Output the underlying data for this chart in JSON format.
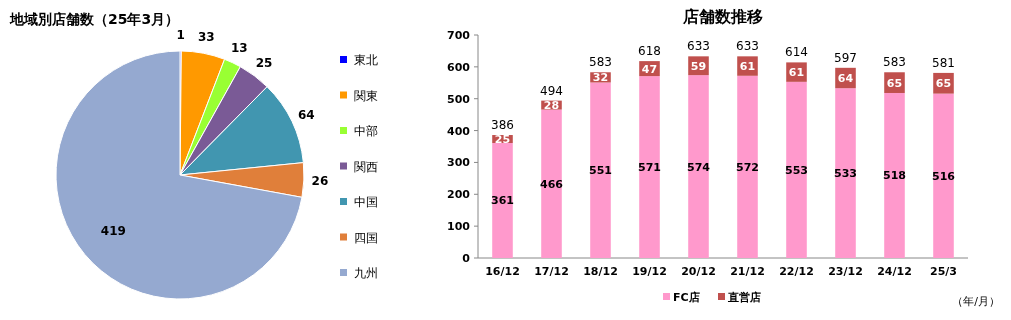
{
  "chart_data": [
    {
      "type": "pie",
      "title": "地域別店舗数（25年3月）",
      "categories": [
        "東北",
        "関東",
        "中部",
        "関西",
        "中国",
        "四国",
        "九州"
      ],
      "values": [
        1,
        33,
        13,
        25,
        64,
        26,
        419
      ],
      "colors": [
        "#0000ff",
        "#ff9900",
        "#99ff33",
        "#7a5a96",
        "#4196b0",
        "#e07f3a",
        "#95a9d0"
      ],
      "data_labels": true,
      "legend": "right"
    },
    {
      "type": "bar",
      "title": "店舗数推移",
      "categories": [
        "16/12",
        "17/12",
        "18/12",
        "19/12",
        "20/12",
        "21/12",
        "22/12",
        "23/12",
        "24/12",
        "25/3"
      ],
      "stacked": true,
      "series": [
        {
          "name": "FC店",
          "color": "#ff99cc",
          "values": [
            361,
            466,
            551,
            571,
            574,
            572,
            553,
            533,
            518,
            516
          ]
        },
        {
          "name": "直営店",
          "color": "#c0504d",
          "values": [
            25,
            28,
            32,
            47,
            59,
            61,
            61,
            64,
            65,
            65
          ]
        }
      ],
      "totals": [
        "386",
        "494",
        "583",
        "618",
        "633",
        "633",
        "614",
        "597",
        "583",
        "581"
      ],
      "ylim": [
        0,
        700
      ],
      "yticks": [
        0,
        100,
        200,
        300,
        400,
        500,
        600,
        700
      ],
      "data_labels": true,
      "legend": "bottom",
      "annotations": [
        "（年/月）"
      ]
    }
  ]
}
